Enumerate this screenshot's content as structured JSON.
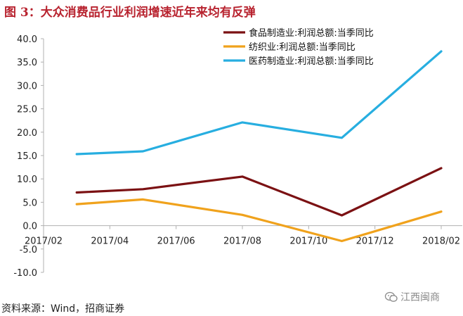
{
  "header": {
    "title": "图 3：大众消费品行业利润增速近年来均有反弹"
  },
  "chart_data": {
    "type": "line",
    "categories": [
      "2017/02",
      "2017/04",
      "2017/06",
      "2017/08",
      "2017/10",
      "2017/12",
      "2018/02"
    ],
    "series": [
      {
        "name": "食品制造业:利润总额:当季同比",
        "color": "#7b1113",
        "x": [
          "2017/03",
          "2017/05",
          "2017/08",
          "2017/11",
          "2018/02"
        ],
        "values": [
          7.1,
          7.8,
          10.5,
          2.2,
          12.3
        ]
      },
      {
        "name": "纺织业:利润总额:当季同比",
        "color": "#f0a21c",
        "x": [
          "2017/03",
          "2017/05",
          "2017/08",
          "2017/11",
          "2018/02"
        ],
        "values": [
          4.6,
          5.6,
          2.3,
          -3.3,
          3.0
        ]
      },
      {
        "name": "医药制造业:利润总额:当季同比",
        "color": "#27aee0",
        "x": [
          "2017/03",
          "2017/05",
          "2017/08",
          "2017/11",
          "2018/02"
        ],
        "values": [
          15.3,
          15.9,
          22.1,
          18.8,
          37.3
        ]
      }
    ],
    "yticks": [
      "40.0",
      "35.0",
      "30.0",
      "25.0",
      "20.0",
      "15.0",
      "10.0",
      "5.0",
      "0.0",
      "-5.0",
      "-10.0"
    ],
    "ylim": [
      -10,
      40
    ],
    "xlabel": "",
    "ylabel": "",
    "legend": "top-right"
  },
  "footer": {
    "source": "资料来源：Wind，招商证券",
    "brand": "江西闽商"
  }
}
